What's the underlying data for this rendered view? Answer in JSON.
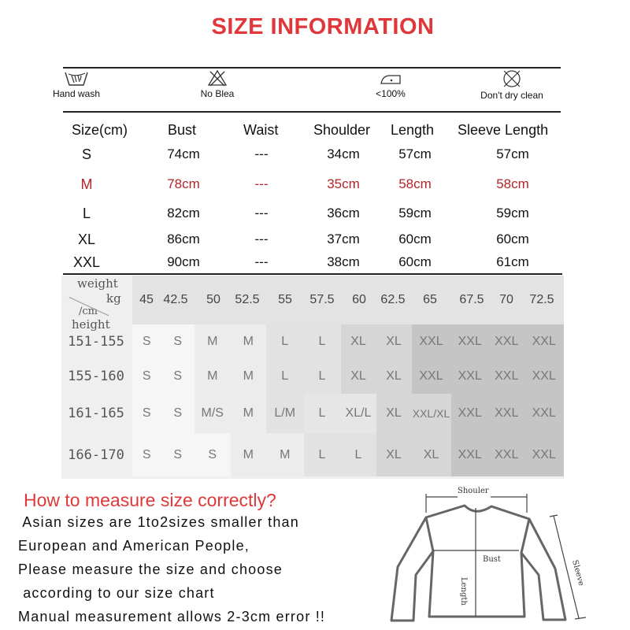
{
  "title": "SIZE INFORMATION",
  "care": [
    {
      "icon": "hand-wash-icon",
      "label": "Hand wash"
    },
    {
      "icon": "no-bleach-icon",
      "label": "No Blea"
    },
    {
      "icon": "iron-icon",
      "label": "<100%"
    },
    {
      "icon": "no-dry-clean-icon",
      "label": "Don't dry clean"
    }
  ],
  "measure_table": {
    "headers": [
      "Size(cm)",
      "Bust",
      "Waist",
      "Shoulder",
      "Length",
      "Sleeve  Length"
    ],
    "rows": [
      [
        "S",
        "74cm",
        "---",
        "34cm",
        "57cm",
        "57cm"
      ],
      [
        "M",
        "78cm",
        "---",
        "35cm",
        "58cm",
        "58cm"
      ],
      [
        "L",
        "82cm",
        "---",
        "36cm",
        "59cm",
        "59cm"
      ],
      [
        "XL",
        "86cm",
        "---",
        "37cm",
        "60cm",
        "60cm"
      ],
      [
        "XXL",
        "90cm",
        "---",
        "38cm",
        "60cm",
        "61cm"
      ]
    ],
    "highlight_row": "M",
    "highlight_color": "#b2262a"
  },
  "fit_chart": {
    "corner": {
      "weight": "weight",
      "kg": "kg",
      "cm": "/cm",
      "height": "height"
    },
    "weights": [
      "45",
      "42.5",
      "50",
      "52.5",
      "55",
      "57.5",
      "60",
      "62.5",
      "65",
      "67.5",
      "70",
      "72.5"
    ],
    "heights": [
      "151-155",
      "155-160",
      "161-165",
      "166-170"
    ],
    "sizes": [
      [
        "S",
        "S",
        "M",
        "M",
        "L",
        "L",
        "XL",
        "XL",
        "XXL",
        "XXL",
        "XXL",
        "XXL"
      ],
      [
        "S",
        "S",
        "M",
        "M",
        "L",
        "L",
        "XL",
        "XL",
        "XXL",
        "XXL",
        "XXL",
        "XXL"
      ],
      [
        "S",
        "S",
        "M/S",
        "M",
        "L/M",
        "L",
        "XL/L",
        "XL",
        "XXL/XL",
        "XXL",
        "XXL",
        "XXL"
      ],
      [
        "S",
        "S",
        "S",
        "M",
        "M",
        "L",
        "L",
        "XL",
        "XL",
        "XXL",
        "XXL",
        "XXL"
      ]
    ],
    "shades": [
      [
        "#f6f6f6",
        "#f6f6f6",
        "#ececec",
        "#ececec",
        "#e2e2e2",
        "#e2e2e2",
        "#d6d6d6",
        "#d6d6d6",
        "#c5c5c5",
        "#c5c5c5",
        "#c5c5c5",
        "#c5c5c5"
      ],
      [
        "#f6f6f6",
        "#f6f6f6",
        "#ececec",
        "#ececec",
        "#e2e2e2",
        "#e2e2e2",
        "#d6d6d6",
        "#d6d6d6",
        "#c5c5c5",
        "#c5c5c5",
        "#c5c5c5",
        "#c5c5c5"
      ],
      [
        "#f6f6f6",
        "#f6f6f6",
        "#ececec",
        "#ececec",
        "#e2e2e2",
        "#e6e6e6",
        "#e6e6e6",
        "#d6d6d6",
        "#d6d6d6",
        "#c5c5c5",
        "#c5c5c5",
        "#c5c5c5"
      ],
      [
        "#f6f6f6",
        "#f6f6f6",
        "#f6f6f6",
        "#ececec",
        "#ececec",
        "#e2e2e2",
        "#e2e2e2",
        "#d6d6d6",
        "#d6d6d6",
        "#c5c5c5",
        "#c5c5c5",
        "#c5c5c5"
      ]
    ]
  },
  "howto": {
    "title": "How to measure size correctly?",
    "lines": [
      " Asian sizes are 1to2sizes smaller than",
      "European and American People,",
      "Please measure the size and choose",
      " according to our size chart",
      "Manual measurement allows 2-3cm error !!"
    ]
  },
  "diagram": {
    "shoulder": "Shouler",
    "bust": "Bust",
    "length": "Length",
    "sleeve": "Sleeve"
  }
}
